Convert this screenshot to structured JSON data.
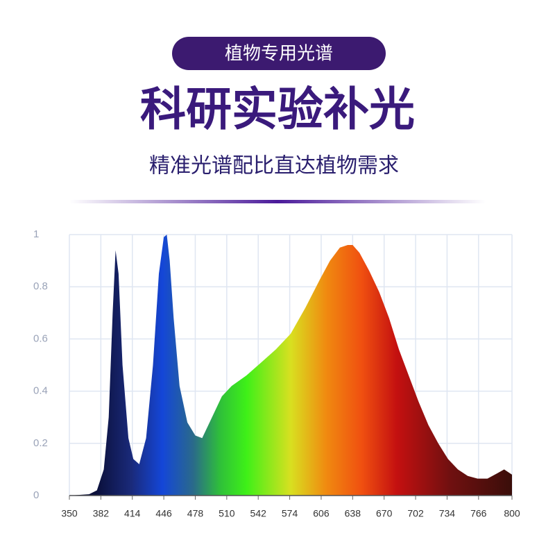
{
  "header": {
    "badge": "植物专用光谱",
    "title": "科研实验补光",
    "subtitle": "精准光谱配比直达植物需求"
  },
  "chart_data": {
    "type": "area",
    "x": [
      350,
      370,
      378,
      385,
      390,
      394,
      397,
      400,
      404,
      410,
      415,
      421,
      428,
      435,
      441,
      446,
      449,
      452,
      456,
      462,
      470,
      478,
      485,
      495,
      505,
      515,
      530,
      545,
      560,
      575,
      590,
      605,
      615,
      625,
      633,
      638,
      645,
      655,
      665,
      675,
      685,
      695,
      705,
      715,
      725,
      735,
      745,
      755,
      765,
      775,
      785,
      792,
      800
    ],
    "y": [
      0,
      0.005,
      0.02,
      0.1,
      0.3,
      0.7,
      0.94,
      0.85,
      0.5,
      0.22,
      0.14,
      0.12,
      0.22,
      0.5,
      0.85,
      0.99,
      1.0,
      0.9,
      0.68,
      0.42,
      0.28,
      0.23,
      0.22,
      0.3,
      0.38,
      0.42,
      0.46,
      0.51,
      0.56,
      0.62,
      0.72,
      0.83,
      0.9,
      0.95,
      0.96,
      0.96,
      0.93,
      0.86,
      0.78,
      0.68,
      0.56,
      0.46,
      0.36,
      0.27,
      0.2,
      0.14,
      0.1,
      0.075,
      0.065,
      0.065,
      0.085,
      0.1,
      0.08
    ],
    "xlim": [
      350,
      800
    ],
    "xticks": [
      350,
      382,
      414,
      446,
      478,
      510,
      542,
      574,
      606,
      638,
      670,
      702,
      734,
      766,
      800
    ],
    "ylim": [
      0,
      1
    ],
    "yticks": [
      0,
      0.2,
      0.4,
      0.6,
      0.8,
      1
    ],
    "grid": true
  }
}
